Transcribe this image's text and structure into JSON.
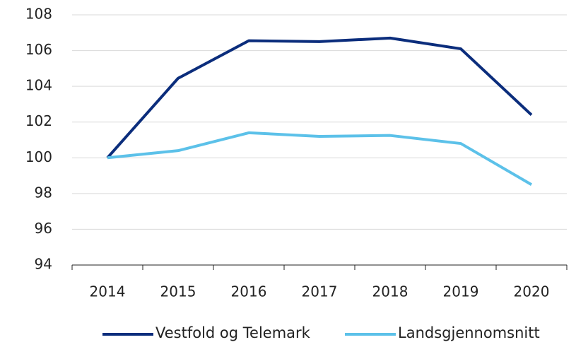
{
  "chart_data": {
    "type": "line",
    "categories": [
      "2014",
      "2015",
      "2016",
      "2017",
      "2018",
      "2019",
      "2020"
    ],
    "series": [
      {
        "name": "Vestfold og Telemark",
        "color": "#0b2d7c",
        "values": [
          100,
          104.45,
          106.55,
          106.5,
          106.7,
          106.1,
          102.4
        ]
      },
      {
        "name": "Landsgjennomsnitt",
        "color": "#5cc1e9",
        "values": [
          100,
          100.4,
          101.4,
          101.2,
          101.25,
          100.8,
          98.5
        ]
      }
    ],
    "ylim": [
      94,
      108
    ],
    "yticks": [
      94,
      96,
      98,
      100,
      102,
      104,
      106,
      108
    ],
    "grid": true,
    "legend": "bottom"
  }
}
